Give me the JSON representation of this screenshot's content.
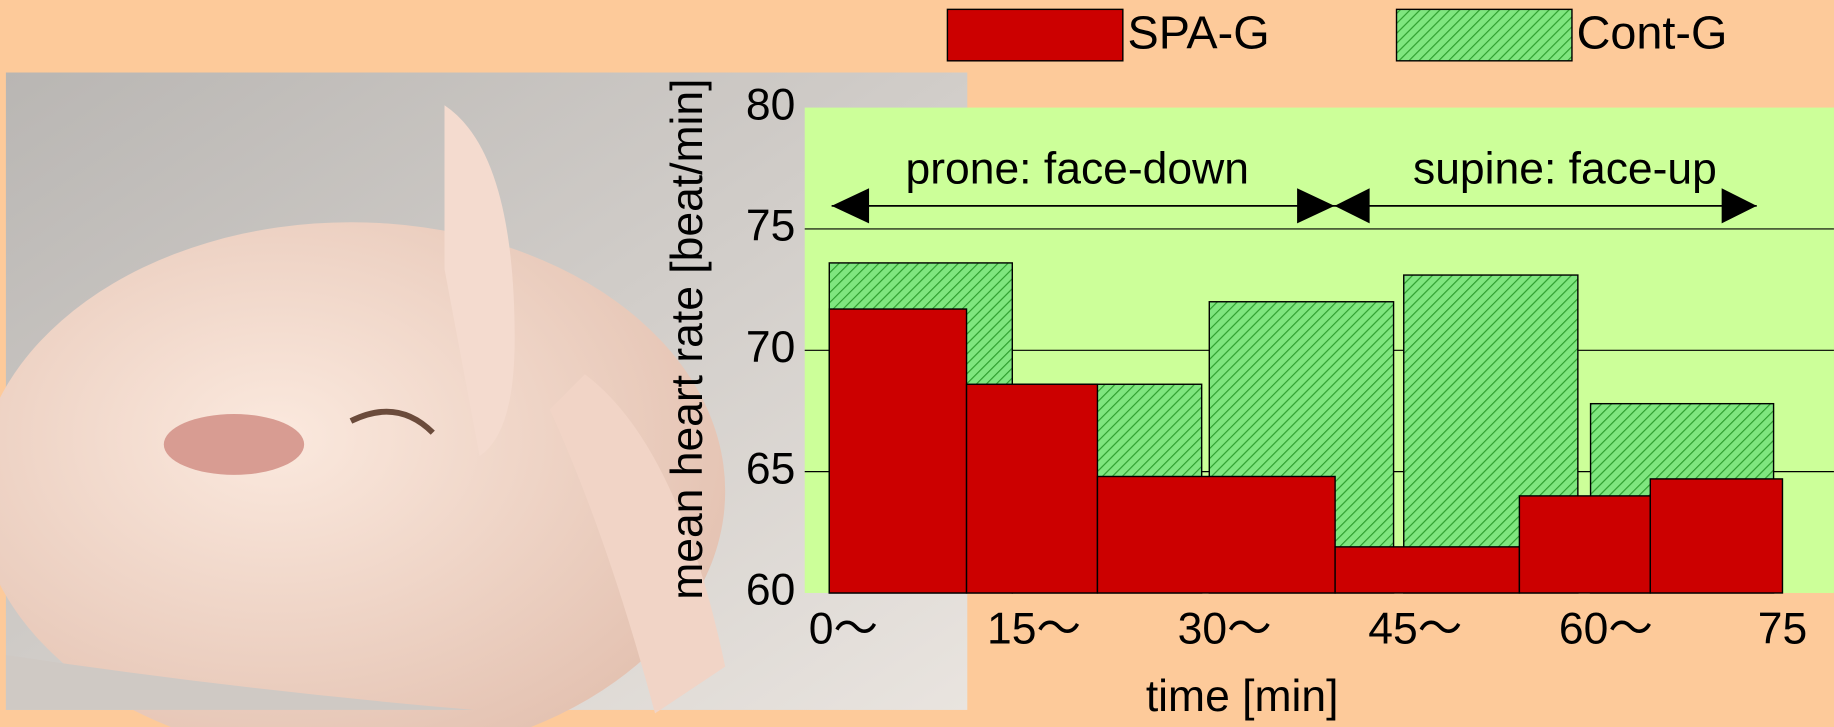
{
  "chart_data": {
    "type": "bar",
    "xlabel": "time [min]",
    "ylabel": "mean heart rate [beat/min]",
    "annotations": [
      "prone: face-down",
      "supine: face-up"
    ],
    "xlim": [
      0,
      75
    ],
    "xticks": [
      {
        "value": 0,
        "label": "0〜"
      },
      {
        "value": 15,
        "label": "15〜"
      },
      {
        "value": 30,
        "label": "30〜"
      },
      {
        "value": 45,
        "label": "45〜"
      },
      {
        "value": 60,
        "label": "60〜"
      },
      75
    ],
    "ylim": [
      60,
      80
    ],
    "yticks": [
      60,
      65,
      70,
      75,
      80
    ],
    "grid": true,
    "series": [
      {
        "name": "Cont-G",
        "color": "#7fe67f",
        "hatch": true,
        "x_start": [
          0,
          14.4,
          29.9,
          45.2,
          59.9
        ],
        "x_end": [
          14.4,
          29.3,
          44.4,
          58.9,
          74.3
        ],
        "values": [
          73.6,
          68.6,
          72.0,
          73.1,
          67.8
        ]
      },
      {
        "name": "SPA-G",
        "color": "#cc0000",
        "hatch": false,
        "x_start": [
          0,
          10.8,
          21.1,
          39.8,
          54.3,
          64.6
        ],
        "x_end": [
          10.8,
          21.1,
          39.8,
          54.3,
          64.6,
          75
        ],
        "values": [
          71.7,
          68.6,
          64.8,
          61.9,
          64.0,
          64.7
        ]
      }
    ]
  }
}
